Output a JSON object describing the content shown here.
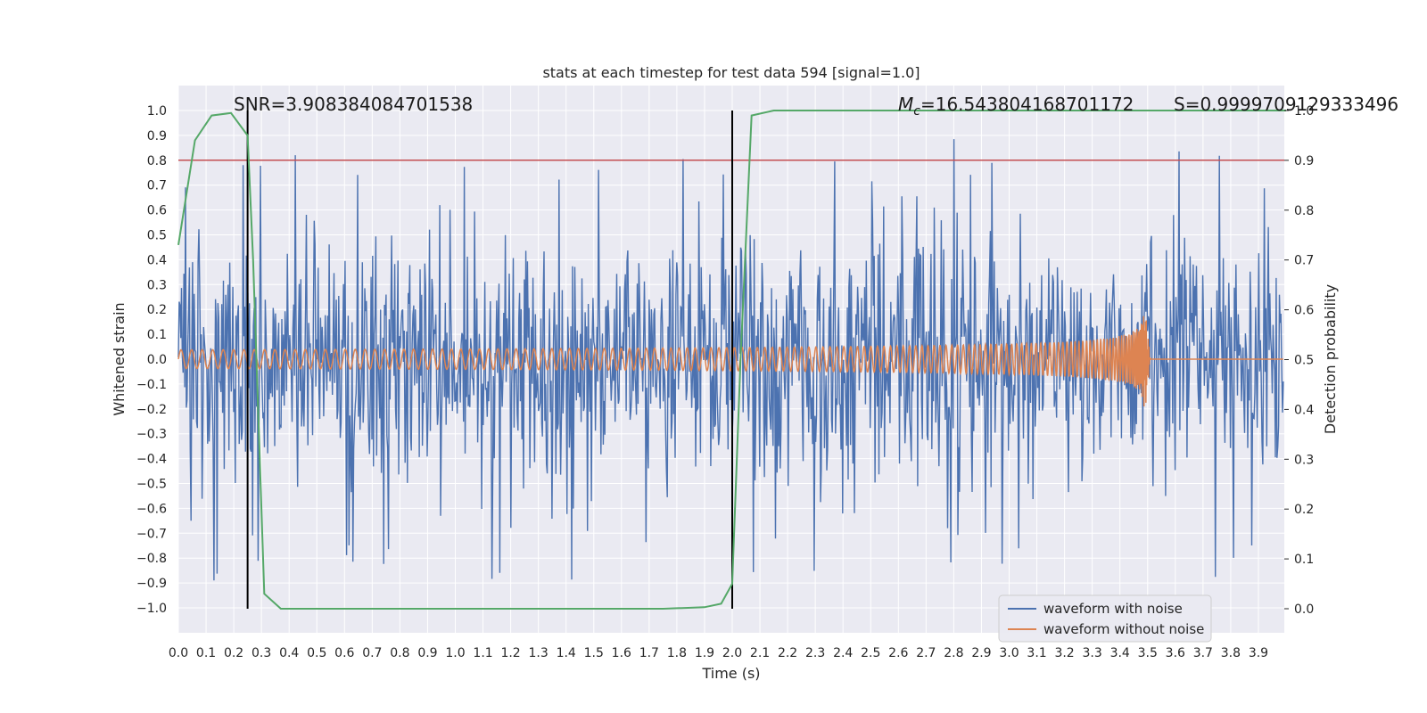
{
  "chart_data": {
    "type": "line",
    "title": "stats at each timestep for test data 594 [signal=1.0]",
    "xlabel": "Time (s)",
    "ylabel": "Whitened strain",
    "y2label": "Detection probability",
    "xlim": [
      0.0,
      4.0
    ],
    "ylim": [
      -1.1,
      1.1
    ],
    "y2lim": [
      -0.05,
      1.05
    ],
    "x_ticks": [
      "0.0",
      "0.1",
      "0.2",
      "0.3",
      "0.4",
      "0.5",
      "0.6",
      "0.7",
      "0.8",
      "0.9",
      "1.0",
      "1.1",
      "1.2",
      "1.3",
      "1.4",
      "1.5",
      "1.6",
      "1.7",
      "1.8",
      "1.9",
      "2.0",
      "2.1",
      "2.2",
      "2.3",
      "2.4",
      "2.5",
      "2.6",
      "2.7",
      "2.8",
      "2.9",
      "3.0",
      "3.1",
      "3.2",
      "3.3",
      "3.4",
      "3.5",
      "3.6",
      "3.7",
      "3.8",
      "3.9"
    ],
    "y_ticks": [
      "1.0",
      "0.9",
      "0.8",
      "0.7",
      "0.6",
      "0.5",
      "0.4",
      "0.3",
      "0.2",
      "0.1",
      "0.0",
      "−0.1",
      "−0.2",
      "−0.3",
      "−0.4",
      "−0.5",
      "−0.6",
      "−0.7",
      "−0.8",
      "−0.9",
      "−1.0"
    ],
    "y2_ticks": [
      "1.0",
      "0.9",
      "0.8",
      "0.7",
      "0.6",
      "0.5",
      "0.4",
      "0.3",
      "0.2",
      "0.1",
      "0.0"
    ],
    "annotations": {
      "snr": "SNR=3.908384084701538",
      "mc_symbol": "M",
      "mc_sub": "c",
      "mc_value": "=16.543804168701172",
      "s": "S=0.9999709129333496"
    },
    "threshold": {
      "y": 0.8,
      "color": "#c44e52"
    },
    "vlines": [
      0.25,
      2.0
    ],
    "series": [
      {
        "name": "waveform with noise",
        "color": "#4c72b0",
        "kind": "noise",
        "range": [
          -1.0,
          1.0
        ],
        "n": 1400,
        "seed": 594
      },
      {
        "name": "waveform without noise",
        "color": "#dd8452",
        "kind": "chirp",
        "t_merge": 3.49,
        "peak_amplitude": 0.22,
        "start_amplitude": 0.006
      },
      {
        "name": "detection probability",
        "color": "#55a868",
        "axis": "right",
        "x": [
          0.0,
          0.06,
          0.12,
          0.19,
          0.25,
          0.27,
          0.31,
          0.37,
          0.5,
          1.0,
          1.5,
          1.75,
          1.9,
          1.96,
          2.0,
          2.03,
          2.07,
          2.15,
          2.5,
          3.0,
          3.5,
          4.0
        ],
        "y": [
          0.73,
          0.94,
          0.99,
          0.995,
          0.95,
          0.7,
          0.03,
          0.0,
          0.0,
          0.0,
          0.0,
          0.0,
          0.003,
          0.01,
          0.05,
          0.5,
          0.99,
          1.0,
          1.0,
          1.0,
          1.0,
          1.0
        ]
      }
    ],
    "legend": [
      "waveform with noise",
      "waveform without noise"
    ],
    "legend_position": "lower-right",
    "grid": true
  }
}
